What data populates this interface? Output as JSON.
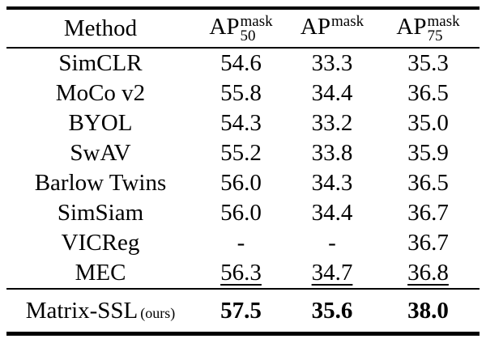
{
  "colors": {
    "background": "#ffffff",
    "text": "#000000",
    "rule": "#000000"
  },
  "table": {
    "header": {
      "method_label": "Method",
      "metric_columns": [
        {
          "base": "AP",
          "sup": "mask",
          "sub": "50"
        },
        {
          "base": "AP",
          "sup": "mask",
          "sub": ""
        },
        {
          "base": "AP",
          "sup": "mask",
          "sub": "75"
        }
      ]
    },
    "rows": [
      {
        "method": "SimCLR",
        "ap50_mask": "54.6",
        "ap_mask": "33.3",
        "ap75_mask": "35.3"
      },
      {
        "method": "MoCo v2",
        "ap50_mask": "55.8",
        "ap_mask": "34.4",
        "ap75_mask": "36.5"
      },
      {
        "method": "BYOL",
        "ap50_mask": "54.3",
        "ap_mask": "33.2",
        "ap75_mask": "35.0"
      },
      {
        "method": "SwAV",
        "ap50_mask": "55.2",
        "ap_mask": "33.8",
        "ap75_mask": "35.9"
      },
      {
        "method": "Barlow Twins",
        "ap50_mask": "56.0",
        "ap_mask": "34.3",
        "ap75_mask": "36.5"
      },
      {
        "method": "SimSiam",
        "ap50_mask": "56.0",
        "ap_mask": "34.4",
        "ap75_mask": "36.7"
      },
      {
        "method": "VICReg",
        "ap50_mask": "-",
        "ap_mask": "-",
        "ap75_mask": "36.7"
      },
      {
        "method": "MEC",
        "ap50_mask": "56.3",
        "ap_mask": "34.7",
        "ap75_mask": "36.8"
      }
    ],
    "highlight_row": {
      "method": "Matrix-SSL",
      "method_suffix": "(ours)",
      "ap50_mask": "57.5",
      "ap_mask": "35.6",
      "ap75_mask": "38.0"
    }
  }
}
